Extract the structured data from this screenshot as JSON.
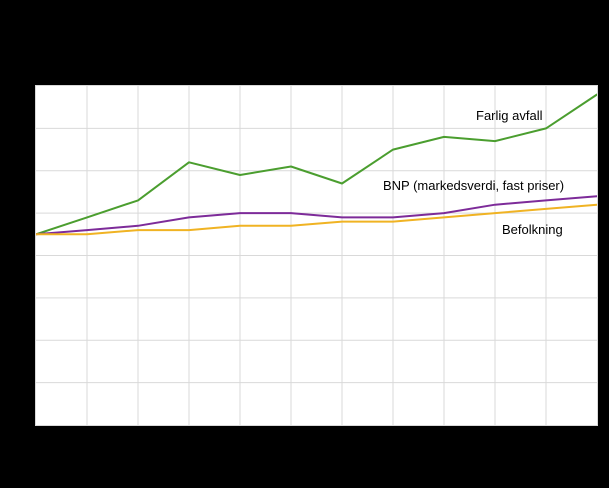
{
  "figure": {
    "background_color": "#000000",
    "plot_background_color": "#ffffff",
    "grid_color": "#d9d9d9"
  },
  "labels": {
    "farlig_avfall": "Farlig avfall",
    "bnp": "BNP (markedsverdi, fast priser)",
    "befolkning": "Befolkning"
  },
  "chart_data": {
    "type": "line",
    "x": [
      1,
      2,
      3,
      4,
      5,
      6,
      7,
      8,
      9,
      10,
      11,
      12
    ],
    "series": [
      {
        "name": "Farlig avfall",
        "color": "#4b9e2f",
        "values": [
          100,
          104,
          108,
          117,
          114,
          116,
          112,
          120,
          123,
          122,
          125,
          133
        ]
      },
      {
        "name": "BNP (markedsverdi, fast priser)",
        "color": "#7d2b99",
        "values": [
          100,
          101,
          102,
          104,
          105,
          105,
          104,
          104,
          105,
          107,
          108,
          109
        ]
      },
      {
        "name": "Befolkning",
        "color": "#f0b323",
        "values": [
          100,
          100,
          101,
          101,
          102,
          102,
          103,
          103,
          104,
          105,
          106,
          107
        ]
      }
    ],
    "ylim": [
      55,
      135
    ],
    "grid": {
      "h_divisions": 8,
      "v_divisions": 11,
      "grid_on": true
    },
    "title": "",
    "xlabel": "",
    "ylabel": "",
    "legend_position": "inline-labels",
    "axis_tick_labels_visible": false
  }
}
